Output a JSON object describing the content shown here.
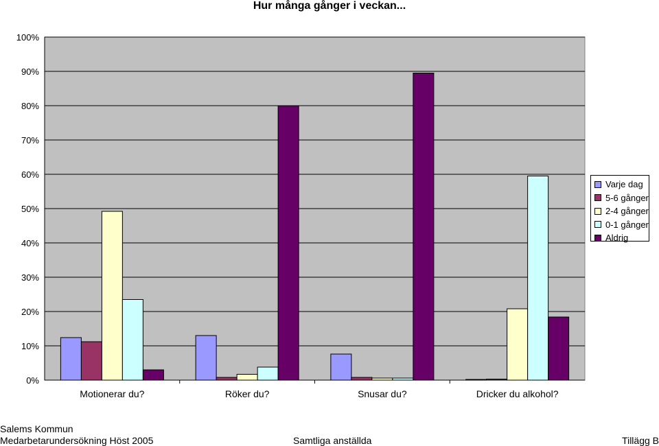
{
  "chart_data": {
    "type": "bar",
    "title": "Hur många gånger i veckan...",
    "categories": [
      "Motionerar du?",
      "Röker du?",
      "Snusar du?",
      "Dricker du alkohol?"
    ],
    "series": [
      {
        "name": "Varje dag",
        "color": "#9999ff",
        "values": [
          12.4,
          13.0,
          7.6,
          0.2
        ]
      },
      {
        "name": "5-6 gånger",
        "color": "#993366",
        "values": [
          11.2,
          0.8,
          0.8,
          0.3
        ]
      },
      {
        "name": "2-4 gånger",
        "color": "#ffffcc",
        "values": [
          49.2,
          1.7,
          0.6,
          20.8
        ]
      },
      {
        "name": "0-1 gånger",
        "color": "#ccffff",
        "values": [
          23.5,
          3.8,
          0.6,
          59.5
        ]
      },
      {
        "name": "Aldrig",
        "color": "#660066",
        "values": [
          3.0,
          80.0,
          89.5,
          18.4
        ]
      }
    ],
    "ylim": [
      0,
      100
    ],
    "yticks": [
      "0%",
      "10%",
      "20%",
      "30%",
      "40%",
      "50%",
      "60%",
      "70%",
      "80%",
      "90%",
      "100%"
    ],
    "xlabel": "",
    "ylabel": "",
    "grid": true,
    "legend": "right",
    "plot_background": "#c0c0c0"
  },
  "footer": {
    "org": "Salems Kommun",
    "survey": "Medarbetarundersökning Höst 2005",
    "group": "Samtliga anställda",
    "appendix": "Tillägg B"
  }
}
